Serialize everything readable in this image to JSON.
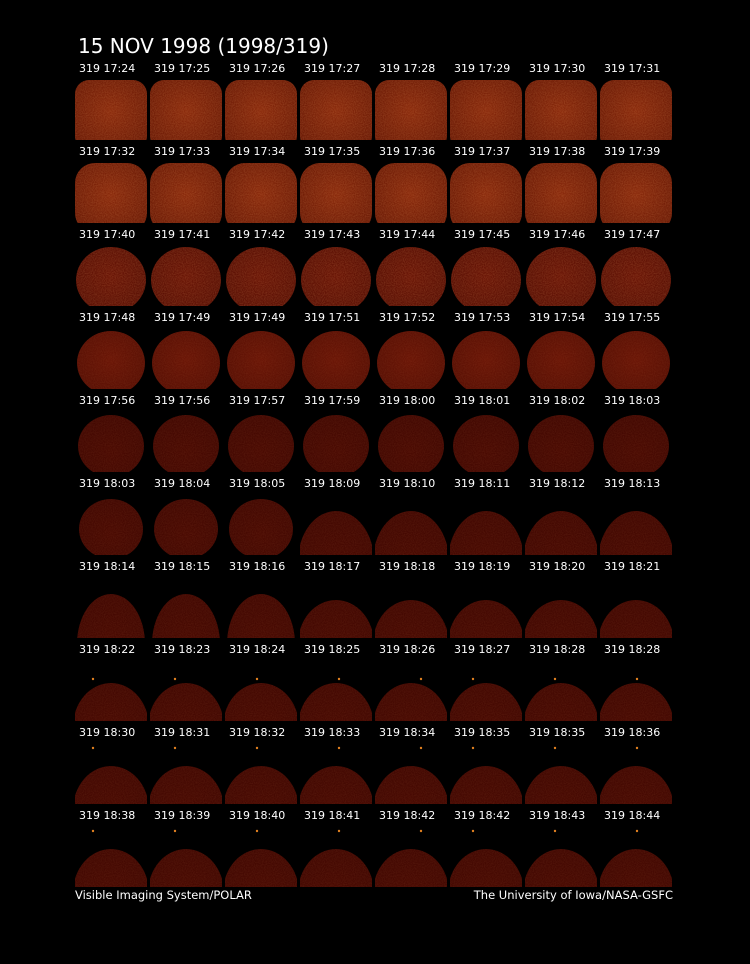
{
  "header": {
    "title": "15 NOV 1998  (1998/319)"
  },
  "frames": [
    [
      "319 17:24",
      "319 17:25",
      "319 17:26",
      "319 17:27",
      "319 17:28",
      "319 17:29",
      "319 17:30",
      "319 17:31"
    ],
    [
      "319 17:32",
      "319 17:33",
      "319 17:34",
      "319 17:35",
      "319 17:36",
      "319 17:37",
      "319 17:38",
      "319 17:39"
    ],
    [
      "319 17:40",
      "319 17:41",
      "319 17:42",
      "319 17:43",
      "319 17:44",
      "319 17:45",
      "319 17:46",
      "319 17:47"
    ],
    [
      "319 17:48",
      "319 17:49",
      "319 17:49",
      "319 17:51",
      "319 17:52",
      "319 17:53",
      "319 17:54",
      "319 17:55"
    ],
    [
      "319 17:56",
      "319 17:56",
      "319 17:57",
      "319 17:59",
      "319 18:00",
      "319 18:01",
      "319 18:02",
      "319 18:03"
    ],
    [
      "319 18:03",
      "319 18:04",
      "319 18:05",
      "319 18:09",
      "319 18:10",
      "319 18:11",
      "319 18:12",
      "319 18:13"
    ],
    [
      "319 18:14",
      "319 18:15",
      "319 18:16",
      "319 18:17",
      "319 18:18",
      "319 18:19",
      "319 18:20",
      "319 18:21"
    ],
    [
      "319 18:22",
      "319 18:23",
      "319 18:24",
      "319 18:25",
      "319 18:26",
      "319 18:27",
      "319 18:28",
      "319 18:28"
    ],
    [
      "319 18:30",
      "319 18:31",
      "319 18:32",
      "319 18:33",
      "319 18:34",
      "319 18:35",
      "319 18:35",
      "319 18:36"
    ],
    [
      "319 18:38",
      "319 18:39",
      "319 18:40",
      "319 18:41",
      "319 18:42",
      "319 18:42",
      "319 18:43",
      "319 18:44"
    ]
  ],
  "footer": {
    "left": "Visible Imaging System/POLAR",
    "right": "The University of Iowa/NASA-GSFC"
  }
}
